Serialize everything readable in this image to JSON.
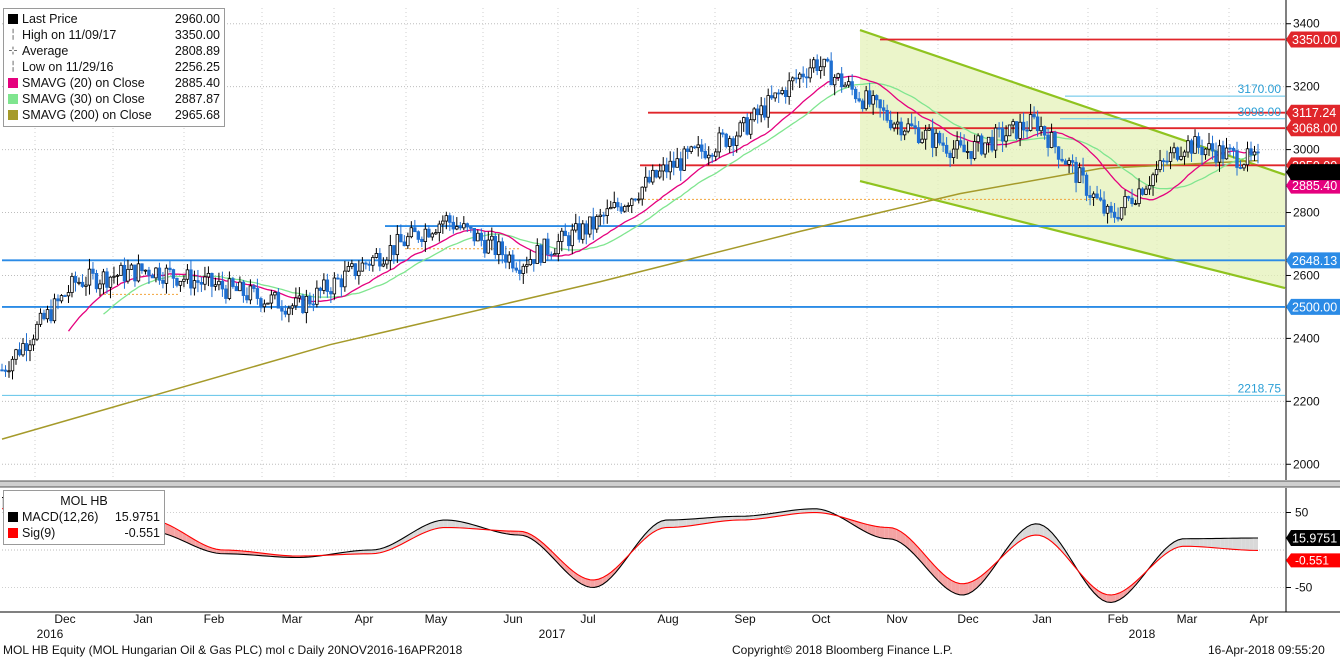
{
  "legend": {
    "items": [
      {
        "label": "Last Price",
        "value": "2960.00",
        "color": "#000000",
        "kind": "swatch"
      },
      {
        "label": "High on 11/09/17",
        "value": "3350.00",
        "kind": "sub",
        "glyph": "╎"
      },
      {
        "label": "Average",
        "value": "2808.89",
        "kind": "sub",
        "glyph": "-+-"
      },
      {
        "label": "Low on 11/29/16",
        "value": "2256.25",
        "kind": "sub",
        "glyph": "╎"
      },
      {
        "label": "SMAVG (20) on Close",
        "value": "2885.40",
        "color": "#e5007e",
        "kind": "swatch"
      },
      {
        "label": "SMAVG (30) on Close",
        "value": "2887.87",
        "color": "#7fe58f",
        "kind": "swatch"
      },
      {
        "label": "SMAVG (200) on Close",
        "value": "2965.68",
        "color": "#a59a2a",
        "kind": "swatch"
      }
    ]
  },
  "macd_legend": {
    "title": "MOL HB",
    "items": [
      {
        "label": "MACD(12,26)",
        "value": "15.9751",
        "color": "#000000"
      },
      {
        "label": "Sig(9)",
        "value": "-0.551",
        "color": "#ff0000"
      }
    ]
  },
  "footer": {
    "left": "MOL HB Equity (MOL Hungarian Oil & Gas PLC) mol c  Daily 20NOV2016-16APR2018",
    "center": "Copyright© 2018 Bloomberg Finance L.P.",
    "right": "16-Apr-2018 09:55:20"
  },
  "chart_data": {
    "type": "candlestick",
    "price_axis": {
      "ylim": [
        1950,
        3450
      ],
      "ticks": [
        2000,
        2200,
        2400,
        2600,
        2800,
        3000,
        3200,
        3400
      ],
      "tick_labels": [
        "2000",
        "2200",
        "2400",
        "2600",
        "2800",
        "3000",
        "3200",
        "3400"
      ]
    },
    "time_axis": {
      "labels": [
        "Dec",
        "Jan",
        "Feb",
        "Mar",
        "Apr",
        "May",
        "Jun",
        "Jul",
        "Aug",
        "Sep",
        "Oct",
        "Nov",
        "Dec",
        "Jan",
        "Feb",
        "Mar",
        "Apr"
      ],
      "year_labels": [
        {
          "label": "2016",
          "at": "Dec"
        },
        {
          "label": "2017",
          "at": "Jun"
        },
        {
          "label": "2018",
          "at": "Feb"
        }
      ]
    },
    "price_series_monthly": {
      "months": [
        "Nov-16",
        "Dec-16",
        "Jan-17",
        "Feb-17",
        "Mar-17",
        "Apr-17",
        "May-17",
        "Jun-17",
        "Jul-17",
        "Aug-17",
        "Sep-17",
        "Oct-17",
        "Nov-17",
        "Dec-17",
        "Jan-18",
        "Feb-18",
        "Mar-18",
        "Apr-18"
      ],
      "approx_close": [
        2300,
        2580,
        2620,
        2560,
        2500,
        2650,
        2780,
        2640,
        2760,
        2940,
        3060,
        3280,
        3100,
        2990,
        3090,
        2780,
        3020,
        2960
      ]
    },
    "sma200_approx": [
      {
        "date": "Nov-16",
        "value": 2080
      },
      {
        "date": "Apr-17",
        "value": 2430
      },
      {
        "date": "Sep-17",
        "value": 2740
      },
      {
        "date": "Dec-17",
        "value": 2920
      },
      {
        "date": "Apr-18",
        "value": 2965.68
      }
    ],
    "horizontal_levels": [
      {
        "value": 3350.0,
        "label": "3350.00",
        "color": "#e0262b",
        "label_bg": "#e0262b"
      },
      {
        "value": 3170.0,
        "label": "3170.00",
        "color": "#5fc2e8",
        "label_bg": "none"
      },
      {
        "value": 3117.24,
        "label": "3117.24",
        "color": "#e0262b",
        "label_bg": "#e0262b"
      },
      {
        "value": 3098.0,
        "label": "3098.00",
        "color": "#5fc2e8",
        "label_bg": "none"
      },
      {
        "value": 3068.0,
        "label": "3068.00",
        "color": "#e0262b",
        "label_bg": "#e0262b"
      },
      {
        "value": 2950.0,
        "label": "2950.00",
        "color": "#e0262b",
        "label_bg": "#e0262b"
      },
      {
        "value": 2885.4,
        "label": "2885.40",
        "color": "#e5007e",
        "label_bg": "#e5007e"
      },
      {
        "value": 2648.13,
        "label": "2648.13",
        "color": "#2b8be6",
        "label_bg": "#2b8be6"
      },
      {
        "value": 2500.0,
        "label": "2500.00",
        "color": "#2b8be6",
        "label_bg": "#2b8be6"
      },
      {
        "value": 2218.75,
        "label": "2218.75",
        "color": "#5fc2e8",
        "label_bg": "none"
      }
    ],
    "last_price": {
      "value": 2960.0,
      "label": "2960.00"
    },
    "macd_axis": {
      "ylim": [
        -80,
        80
      ],
      "ticks": [
        50,
        -50
      ],
      "tick_labels": [
        "50",
        "-50"
      ]
    },
    "macd_last": {
      "macd": "15.9751",
      "signal": "-0.551"
    },
    "macd_series_monthly": {
      "months": [
        "Nov-16",
        "Dec-16",
        "Jan-17",
        "Feb-17",
        "Mar-17",
        "Apr-17",
        "May-17",
        "Jun-17",
        "Jul-17",
        "Aug-17",
        "Sep-17",
        "Oct-17",
        "Nov-17",
        "Dec-17",
        "Jan-18",
        "Feb-18",
        "Mar-18",
        "Apr-18"
      ],
      "macd": [
        70,
        72,
        25,
        -5,
        -10,
        0,
        40,
        20,
        -50,
        40,
        45,
        55,
        15,
        -60,
        35,
        -70,
        15,
        16
      ],
      "signal": [
        55,
        65,
        40,
        0,
        -8,
        -5,
        30,
        25,
        -40,
        30,
        40,
        50,
        30,
        -45,
        20,
        -60,
        5,
        -0.551
      ]
    }
  }
}
